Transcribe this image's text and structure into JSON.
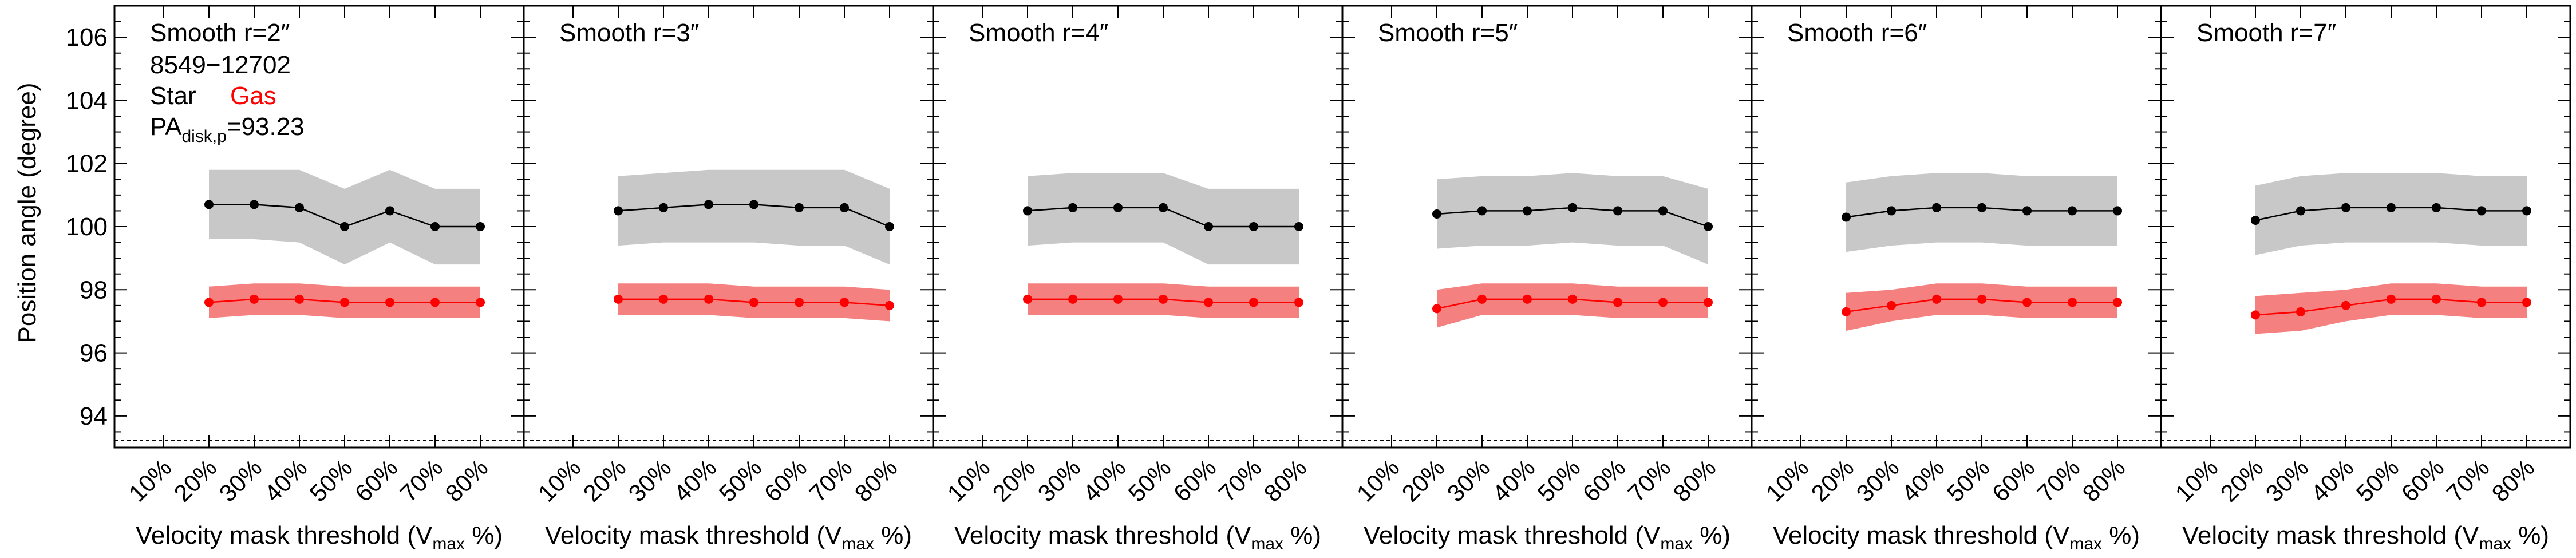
{
  "figure": {
    "ylabel": "Position angle (degree)",
    "xlabel_main": "Velocity mask threshold (V",
    "xlabel_sub": "max",
    "xlabel_tail": " %)",
    "colors": {
      "star": "#000000",
      "star_band": "#c8c8c8",
      "gas": "#ff0000",
      "gas_band": "#f58080",
      "frame": "#000000"
    }
  },
  "legend": {
    "galaxy_id": "8549−12702",
    "star_label": "Star",
    "gas_label": "Gas",
    "pa_prefix": "PA",
    "pa_sub": "disk,p",
    "pa_value": "=93.23"
  },
  "chart_data": [
    {
      "type": "line",
      "title": "Smooth r=2″",
      "categories": [
        "10%",
        "20%",
        "30%",
        "40%",
        "50%",
        "60%",
        "70%",
        "80%"
      ],
      "ylim": [
        93,
        107
      ],
      "yticks": [
        94,
        96,
        98,
        100,
        102,
        104,
        106
      ],
      "reference_line": 93.23,
      "series": [
        {
          "name": "Star",
          "x": [
            "20%",
            "30%",
            "40%",
            "50%",
            "60%",
            "70%",
            "80%"
          ],
          "values": [
            100.7,
            100.7,
            100.6,
            100.0,
            100.5,
            100.0,
            100.0
          ],
          "band_upper": [
            101.8,
            101.8,
            101.8,
            101.2,
            101.8,
            101.2,
            101.2
          ],
          "band_lower": [
            99.6,
            99.6,
            99.5,
            98.8,
            99.5,
            98.8,
            98.8
          ]
        },
        {
          "name": "Gas",
          "x": [
            "20%",
            "30%",
            "40%",
            "50%",
            "60%",
            "70%",
            "80%"
          ],
          "values": [
            97.6,
            97.7,
            97.7,
            97.6,
            97.6,
            97.6,
            97.6
          ],
          "band_upper": [
            98.1,
            98.2,
            98.2,
            98.1,
            98.1,
            98.1,
            98.1
          ],
          "band_lower": [
            97.1,
            97.2,
            97.2,
            97.1,
            97.1,
            97.1,
            97.1
          ]
        }
      ]
    },
    {
      "type": "line",
      "title": "Smooth r=3″",
      "categories": [
        "10%",
        "20%",
        "30%",
        "40%",
        "50%",
        "60%",
        "70%",
        "80%"
      ],
      "ylim": [
        93,
        107
      ],
      "reference_line": 93.23,
      "series": [
        {
          "name": "Star",
          "x": [
            "20%",
            "30%",
            "40%",
            "50%",
            "60%",
            "70%",
            "80%"
          ],
          "values": [
            100.5,
            100.6,
            100.7,
            100.7,
            100.6,
            100.6,
            100.0
          ],
          "band_upper": [
            101.6,
            101.7,
            101.8,
            101.8,
            101.8,
            101.8,
            101.2
          ],
          "band_lower": [
            99.4,
            99.5,
            99.5,
            99.5,
            99.4,
            99.4,
            98.8
          ]
        },
        {
          "name": "Gas",
          "x": [
            "20%",
            "30%",
            "40%",
            "50%",
            "60%",
            "70%",
            "80%"
          ],
          "values": [
            97.7,
            97.7,
            97.7,
            97.6,
            97.6,
            97.6,
            97.5
          ],
          "band_upper": [
            98.2,
            98.2,
            98.2,
            98.1,
            98.1,
            98.1,
            98.0
          ],
          "band_lower": [
            97.2,
            97.2,
            97.2,
            97.1,
            97.1,
            97.1,
            97.0
          ]
        }
      ]
    },
    {
      "type": "line",
      "title": "Smooth r=4″",
      "categories": [
        "10%",
        "20%",
        "30%",
        "40%",
        "50%",
        "60%",
        "70%",
        "80%"
      ],
      "ylim": [
        93,
        107
      ],
      "reference_line": 93.23,
      "series": [
        {
          "name": "Star",
          "x": [
            "20%",
            "30%",
            "40%",
            "50%",
            "60%",
            "70%",
            "80%"
          ],
          "values": [
            100.5,
            100.6,
            100.6,
            100.6,
            100.0,
            100.0,
            100.0
          ],
          "band_upper": [
            101.6,
            101.7,
            101.7,
            101.7,
            101.2,
            101.2,
            101.2
          ],
          "band_lower": [
            99.4,
            99.5,
            99.5,
            99.5,
            98.8,
            98.8,
            98.8
          ]
        },
        {
          "name": "Gas",
          "x": [
            "20%",
            "30%",
            "40%",
            "50%",
            "60%",
            "70%",
            "80%"
          ],
          "values": [
            97.7,
            97.7,
            97.7,
            97.7,
            97.6,
            97.6,
            97.6
          ],
          "band_upper": [
            98.2,
            98.2,
            98.2,
            98.2,
            98.1,
            98.1,
            98.1
          ],
          "band_lower": [
            97.2,
            97.2,
            97.2,
            97.2,
            97.1,
            97.1,
            97.1
          ]
        }
      ]
    },
    {
      "type": "line",
      "title": "Smooth r=5″",
      "categories": [
        "10%",
        "20%",
        "30%",
        "40%",
        "50%",
        "60%",
        "70%",
        "80%"
      ],
      "ylim": [
        93,
        107
      ],
      "reference_line": 93.23,
      "series": [
        {
          "name": "Star",
          "x": [
            "20%",
            "30%",
            "40%",
            "50%",
            "60%",
            "70%",
            "80%"
          ],
          "values": [
            100.4,
            100.5,
            100.5,
            100.6,
            100.5,
            100.5,
            100.0
          ],
          "band_upper": [
            101.5,
            101.6,
            101.6,
            101.7,
            101.6,
            101.6,
            101.2
          ],
          "band_lower": [
            99.3,
            99.4,
            99.4,
            99.5,
            99.4,
            99.4,
            98.8
          ]
        },
        {
          "name": "Gas",
          "x": [
            "20%",
            "30%",
            "40%",
            "50%",
            "60%",
            "70%",
            "80%"
          ],
          "values": [
            97.4,
            97.7,
            97.7,
            97.7,
            97.6,
            97.6,
            97.6
          ],
          "band_upper": [
            98.0,
            98.2,
            98.2,
            98.2,
            98.1,
            98.1,
            98.1
          ],
          "band_lower": [
            96.8,
            97.2,
            97.2,
            97.2,
            97.1,
            97.1,
            97.1
          ]
        }
      ]
    },
    {
      "type": "line",
      "title": "Smooth r=6″",
      "categories": [
        "10%",
        "20%",
        "30%",
        "40%",
        "50%",
        "60%",
        "70%",
        "80%"
      ],
      "ylim": [
        93,
        107
      ],
      "reference_line": 93.23,
      "series": [
        {
          "name": "Star",
          "x": [
            "20%",
            "30%",
            "40%",
            "50%",
            "60%",
            "70%",
            "80%"
          ],
          "values": [
            100.3,
            100.5,
            100.6,
            100.6,
            100.5,
            100.5,
            100.5
          ],
          "band_upper": [
            101.4,
            101.6,
            101.7,
            101.7,
            101.6,
            101.6,
            101.6
          ],
          "band_lower": [
            99.2,
            99.4,
            99.5,
            99.5,
            99.4,
            99.4,
            99.4
          ]
        },
        {
          "name": "Gas",
          "x": [
            "20%",
            "30%",
            "40%",
            "50%",
            "60%",
            "70%",
            "80%"
          ],
          "values": [
            97.3,
            97.5,
            97.7,
            97.7,
            97.6,
            97.6,
            97.6
          ],
          "band_upper": [
            97.9,
            98.0,
            98.2,
            98.2,
            98.1,
            98.1,
            98.1
          ],
          "band_lower": [
            96.7,
            97.0,
            97.2,
            97.2,
            97.1,
            97.1,
            97.1
          ]
        }
      ]
    },
    {
      "type": "line",
      "title": "Smooth r=7″",
      "categories": [
        "10%",
        "20%",
        "30%",
        "40%",
        "50%",
        "60%",
        "70%",
        "80%"
      ],
      "ylim": [
        93,
        107
      ],
      "reference_line": 93.23,
      "series": [
        {
          "name": "Star",
          "x": [
            "20%",
            "30%",
            "40%",
            "50%",
            "60%",
            "70%",
            "80%"
          ],
          "values": [
            100.2,
            100.5,
            100.6,
            100.6,
            100.6,
            100.5,
            100.5
          ],
          "band_upper": [
            101.3,
            101.6,
            101.7,
            101.7,
            101.7,
            101.6,
            101.6
          ],
          "band_lower": [
            99.1,
            99.4,
            99.5,
            99.5,
            99.5,
            99.4,
            99.4
          ]
        },
        {
          "name": "Gas",
          "x": [
            "20%",
            "30%",
            "40%",
            "50%",
            "60%",
            "70%",
            "80%"
          ],
          "values": [
            97.2,
            97.3,
            97.5,
            97.7,
            97.7,
            97.6,
            97.6
          ],
          "band_upper": [
            97.8,
            97.9,
            98.0,
            98.2,
            98.2,
            98.1,
            98.1
          ],
          "band_lower": [
            96.6,
            96.7,
            97.0,
            97.2,
            97.2,
            97.1,
            97.1
          ]
        }
      ]
    }
  ]
}
